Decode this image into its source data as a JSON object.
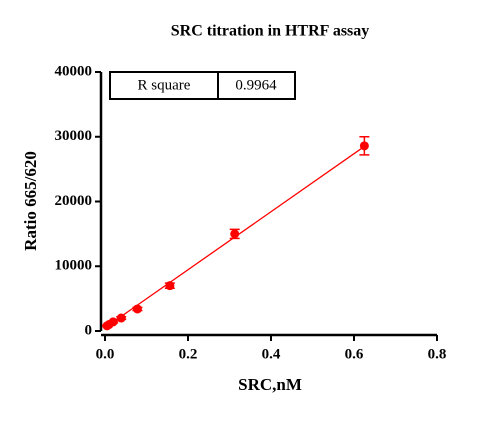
{
  "chart_data": {
    "type": "scatter",
    "title": "SRC titration in HTRF assay",
    "x_label": "SRC,nM",
    "y_label": "Ratio 665/620",
    "xlim": [
      0,
      0.8
    ],
    "ylim": [
      0,
      40000
    ],
    "xticks": [
      {
        "value": 0,
        "label": "0.0"
      },
      0.2,
      0.4,
      0.6,
      0.8
    ],
    "yticks": [
      0,
      10000,
      20000,
      30000,
      40000
    ],
    "series": [
      {
        "color": "#ff0000",
        "x": [
          0.0048828125,
          0.009765625,
          0.01953125,
          0.0390625,
          0.078125,
          0.15625,
          0.3125,
          0.625
        ],
        "values": [
          800,
          1000,
          1400,
          2000,
          3400,
          7000,
          15000,
          28600
        ],
        "errors": [
          100,
          100,
          150,
          200,
          250,
          400,
          700,
          1400
        ]
      }
    ],
    "fit": {
      "color": "#ff0000",
      "x": [
        0,
        0.625
      ],
      "values": [
        500,
        28500
      ]
    },
    "inset_table": {
      "label": "R square",
      "value": "0.9964"
    }
  }
}
